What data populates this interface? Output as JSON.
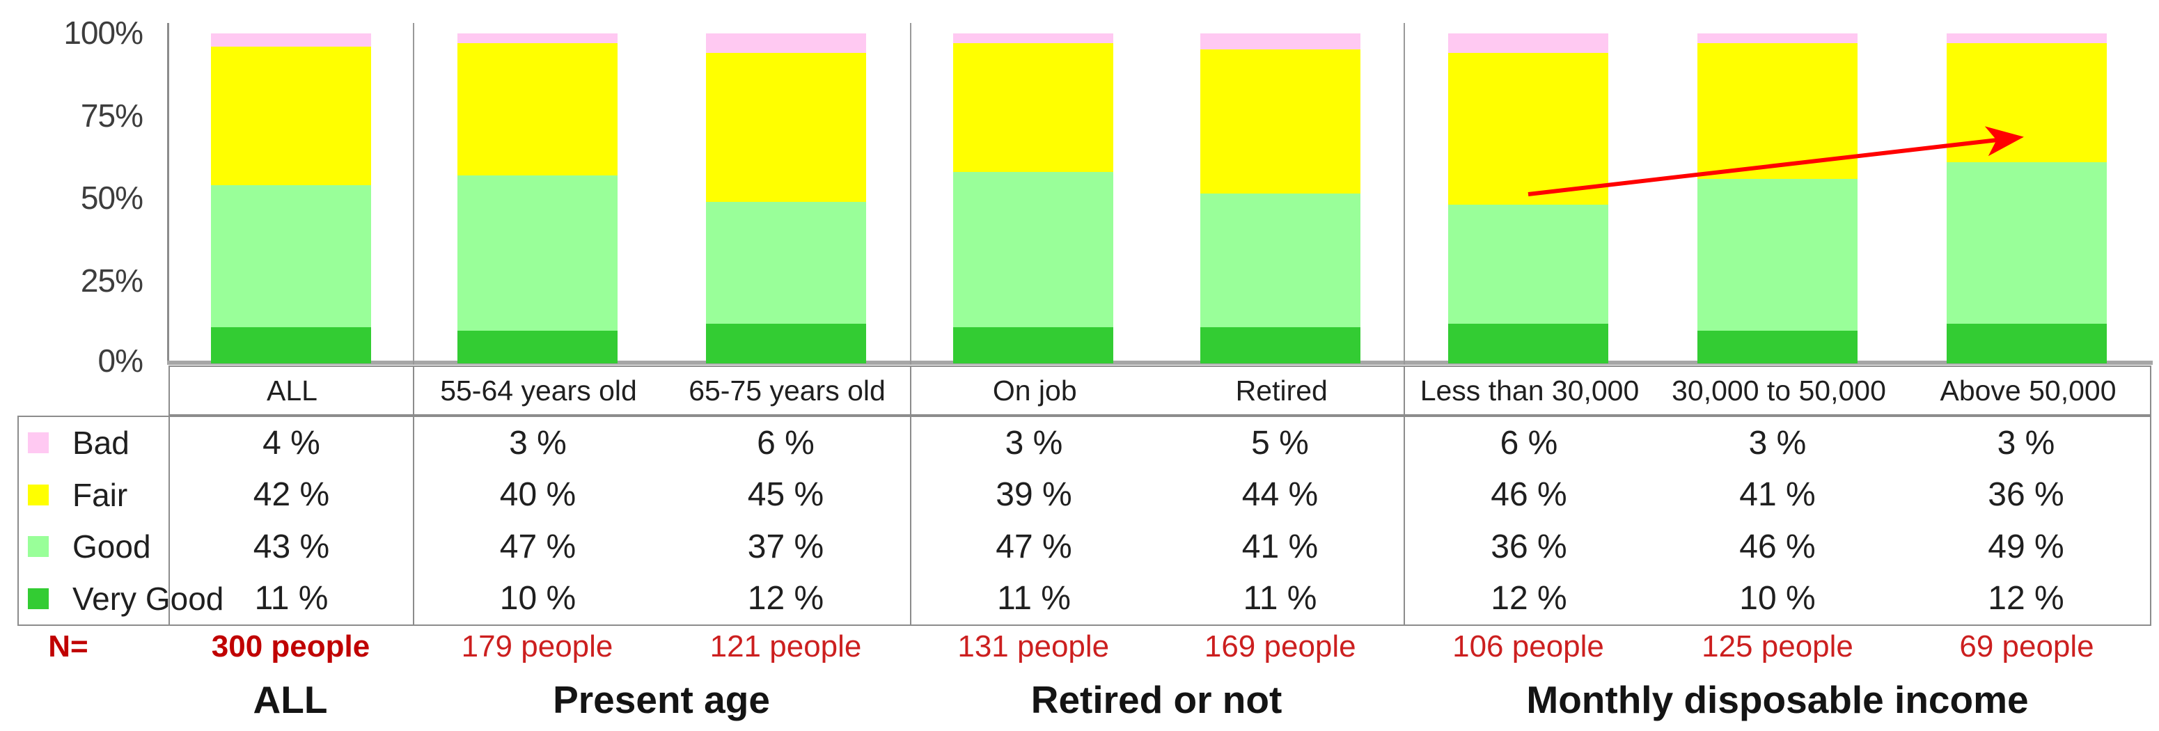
{
  "chart_data": {
    "type": "bar",
    "stacked": true,
    "percent_stacked": true,
    "title": "",
    "xlabel": "",
    "ylabel": "",
    "categories": [
      "ALL",
      "55-64 years old",
      "65-75 years old",
      "On job",
      "Retired",
      "Less than 30,000",
      "30,000 to 50,000",
      "Above 50,000"
    ],
    "series": [
      {
        "name": "Bad",
        "color": "#ffc9f2",
        "values": [
          4,
          3,
          6,
          3,
          5,
          6,
          3,
          3
        ]
      },
      {
        "name": "Fair",
        "color": "#ffff00",
        "values": [
          42,
          40,
          45,
          39,
          44,
          46,
          41,
          36
        ]
      },
      {
        "name": "Good",
        "color": "#99ff99",
        "values": [
          43,
          47,
          37,
          47,
          41,
          36,
          46,
          49
        ]
      },
      {
        "name": "Very Good",
        "color": "#33cc33",
        "values": [
          11,
          10,
          12,
          11,
          11,
          12,
          10,
          12
        ]
      }
    ],
    "y_axis": {
      "ticks": [
        "100%",
        "75%",
        "50%",
        "25%",
        "0%"
      ],
      "range": [
        0,
        100
      ]
    },
    "grid": false,
    "legend_position": "table-left-column",
    "annotation": {
      "type": "arrow",
      "color": "#ff0000",
      "from": {
        "category": "Less than 30,000",
        "value_pct": 51
      },
      "to": {
        "category": "Above 50,000",
        "value_pct": 69
      }
    }
  },
  "table": {
    "rows": [
      {
        "label": "Bad",
        "swatch_color": "#ffc9f2",
        "values": [
          "4 %",
          "3 %",
          "6 %",
          "3 %",
          "5 %",
          "6 %",
          "3 %",
          "3 %"
        ]
      },
      {
        "label": "Fair",
        "swatch_color": "#ffff00",
        "values": [
          "42 %",
          "40 %",
          "45 %",
          "39 %",
          "44 %",
          "46 %",
          "41 %",
          "36 %"
        ]
      },
      {
        "label": "Good",
        "swatch_color": "#99ff99",
        "values": [
          "43 %",
          "47 %",
          "37 %",
          "47 %",
          "41 %",
          "36 %",
          "46 %",
          "49 %"
        ]
      },
      {
        "label": "Very Good",
        "swatch_color": "#33cc33",
        "values": [
          "11 %",
          "10 %",
          "12 %",
          "11 %",
          "11 %",
          "12 %",
          "10 %",
          "12 %"
        ]
      }
    ]
  },
  "n_row": {
    "label": "N=",
    "values": [
      "300 people",
      "179 people",
      "121 people",
      "131 people",
      "169 people",
      "106 people",
      "125 people",
      "69 people"
    ],
    "bold_index": 0
  },
  "group_labels": [
    {
      "label": "ALL"
    },
    {
      "label": "Present age"
    },
    {
      "label": "Retired or not"
    },
    {
      "label": "Monthly disposable income"
    }
  ],
  "colors": {
    "n_red_bold": "#c00000",
    "n_red": "#cc1f1f",
    "arrow_red": "#ff0000",
    "axis_gray": "#8c8c8c",
    "baseline_gray": "#a6a6a6"
  }
}
